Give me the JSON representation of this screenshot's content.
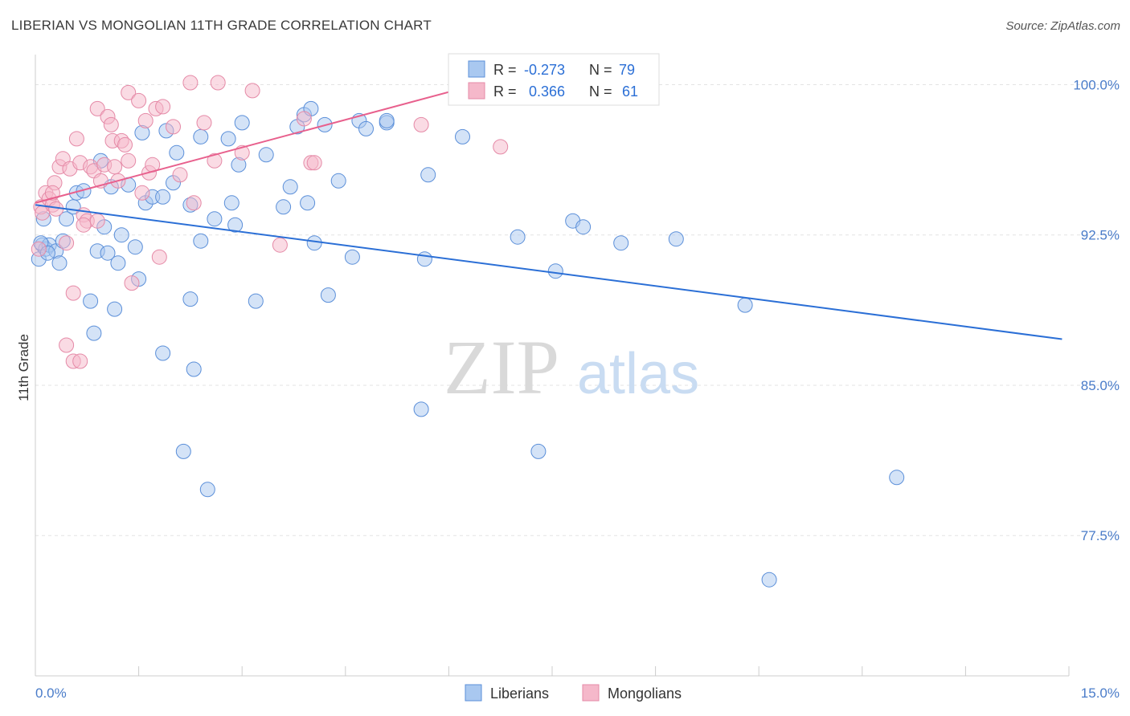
{
  "header": {
    "title": "LIBERIAN VS MONGOLIAN 11TH GRADE CORRELATION CHART",
    "source": "Source: ZipAtlas.com"
  },
  "watermark": {
    "zip": "ZIP",
    "atlas": "atlas"
  },
  "legend_top": {
    "rows": [
      {
        "r_label": "R =",
        "r_value": "-0.273",
        "n_label": "N =",
        "n_value": "79",
        "color": "#a9c8f0"
      },
      {
        "r_label": "R =",
        "r_value": "0.366",
        "n_label": "N =",
        "n_value": "61",
        "color": "#f5b8ca"
      }
    ]
  },
  "legend_bottom": {
    "items": [
      {
        "label": "Liberians",
        "color": "#a9c8f0"
      },
      {
        "label": "Mongolians",
        "color": "#f5b8ca"
      }
    ]
  },
  "chart_data": {
    "type": "scatter",
    "title": "LIBERIAN VS MONGOLIAN 11TH GRADE CORRELATION CHART",
    "xlabel": "",
    "ylabel": "11th Grade",
    "xlim": [
      0,
      15
    ],
    "ylim": [
      70.5,
      101.5
    ],
    "x_tick_labels": [
      "0.0%",
      "15.0%"
    ],
    "y_ticks": [
      {
        "value": 100,
        "label": "100.0%"
      },
      {
        "value": 92.5,
        "label": "92.5%"
      },
      {
        "value": 85,
        "label": "85.0%"
      },
      {
        "value": 77.5,
        "label": "77.5%"
      }
    ],
    "grid": true,
    "legend_position": "bottom",
    "series": [
      {
        "name": "Liberians",
        "color": "#5b8fd9",
        "fill": "#a9c8f0",
        "trend": {
          "x": [
            0,
            14.9
          ],
          "y": [
            94.0,
            87.3
          ],
          "color": "#2b6fd6"
        },
        "points": [
          [
            0.05,
            91.3
          ],
          [
            0.1,
            92.0
          ],
          [
            0.12,
            93.3
          ],
          [
            0.15,
            91.8
          ],
          [
            0.2,
            92.0
          ],
          [
            0.3,
            91.7
          ],
          [
            0.35,
            91.1
          ],
          [
            0.4,
            92.2
          ],
          [
            0.45,
            93.3
          ],
          [
            0.55,
            93.9
          ],
          [
            0.6,
            94.6
          ],
          [
            0.7,
            94.7
          ],
          [
            0.8,
            89.2
          ],
          [
            0.85,
            87.6
          ],
          [
            0.9,
            91.7
          ],
          [
            0.95,
            96.2
          ],
          [
            1.0,
            92.9
          ],
          [
            1.05,
            91.6
          ],
          [
            1.1,
            94.9
          ],
          [
            1.15,
            88.8
          ],
          [
            1.2,
            91.1
          ],
          [
            1.25,
            92.5
          ],
          [
            1.35,
            95.0
          ],
          [
            1.45,
            91.9
          ],
          [
            1.5,
            90.3
          ],
          [
            1.55,
            97.6
          ],
          [
            1.6,
            94.1
          ],
          [
            1.7,
            94.4
          ],
          [
            1.85,
            94.4
          ],
          [
            1.9,
            97.7
          ],
          [
            1.85,
            86.6
          ],
          [
            2.0,
            95.1
          ],
          [
            2.05,
            96.6
          ],
          [
            2.15,
            81.7
          ],
          [
            2.25,
            94.0
          ],
          [
            2.25,
            89.3
          ],
          [
            2.3,
            85.8
          ],
          [
            2.4,
            97.4
          ],
          [
            2.4,
            92.2
          ],
          [
            2.5,
            79.8
          ],
          [
            2.6,
            93.3
          ],
          [
            2.8,
            97.3
          ],
          [
            2.85,
            94.1
          ],
          [
            2.9,
            93.0
          ],
          [
            2.95,
            96.0
          ],
          [
            3.0,
            98.1
          ],
          [
            3.2,
            89.2
          ],
          [
            3.35,
            96.5
          ],
          [
            3.6,
            93.9
          ],
          [
            3.7,
            94.9
          ],
          [
            3.8,
            97.9
          ],
          [
            3.9,
            98.5
          ],
          [
            3.95,
            94.1
          ],
          [
            4.0,
            98.8
          ],
          [
            4.05,
            92.1
          ],
          [
            4.2,
            98.0
          ],
          [
            4.25,
            89.5
          ],
          [
            4.4,
            95.2
          ],
          [
            4.6,
            91.4
          ],
          [
            4.7,
            98.2
          ],
          [
            4.8,
            97.8
          ],
          [
            5.1,
            98.1
          ],
          [
            5.1,
            98.2
          ],
          [
            5.6,
            83.8
          ],
          [
            5.65,
            91.3
          ],
          [
            5.7,
            95.5
          ],
          [
            6.2,
            97.4
          ],
          [
            7.0,
            92.4
          ],
          [
            7.3,
            81.7
          ],
          [
            7.55,
            90.7
          ],
          [
            7.8,
            93.2
          ],
          [
            7.95,
            92.9
          ],
          [
            8.5,
            92.1
          ],
          [
            9.3,
            92.3
          ],
          [
            10.3,
            89.0
          ],
          [
            10.65,
            75.3
          ],
          [
            12.5,
            80.4
          ],
          [
            0.08,
            92.1
          ],
          [
            0.18,
            91.6
          ]
        ]
      },
      {
        "name": "Mongolians",
        "color": "#e58aa7",
        "fill": "#f5b8ca",
        "trend": {
          "x": [
            0,
            6.4
          ],
          "y": [
            94.1,
            100.0
          ],
          "color": "#e8608d"
        },
        "points": [
          [
            0.05,
            91.8
          ],
          [
            0.08,
            93.9
          ],
          [
            0.1,
            93.6
          ],
          [
            0.15,
            94.6
          ],
          [
            0.2,
            94.3
          ],
          [
            0.25,
            94.0
          ],
          [
            0.28,
            95.1
          ],
          [
            0.3,
            93.8
          ],
          [
            0.35,
            95.9
          ],
          [
            0.4,
            96.3
          ],
          [
            0.45,
            92.1
          ],
          [
            0.5,
            95.8
          ],
          [
            0.55,
            89.6
          ],
          [
            0.6,
            97.3
          ],
          [
            0.65,
            96.1
          ],
          [
            0.7,
            93.5
          ],
          [
            0.75,
            93.2
          ],
          [
            0.8,
            95.9
          ],
          [
            0.85,
            95.7
          ],
          [
            0.9,
            98.8
          ],
          [
            0.95,
            95.2
          ],
          [
            1.0,
            96.0
          ],
          [
            1.05,
            98.4
          ],
          [
            1.1,
            98.0
          ],
          [
            1.12,
            97.2
          ],
          [
            1.15,
            95.9
          ],
          [
            1.2,
            95.2
          ],
          [
            1.25,
            97.2
          ],
          [
            1.3,
            97.0
          ],
          [
            1.35,
            96.2
          ],
          [
            1.35,
            99.6
          ],
          [
            1.4,
            90.1
          ],
          [
            1.5,
            99.2
          ],
          [
            1.55,
            94.6
          ],
          [
            1.6,
            98.2
          ],
          [
            1.65,
            95.6
          ],
          [
            1.7,
            96.0
          ],
          [
            1.75,
            98.8
          ],
          [
            1.8,
            91.4
          ],
          [
            1.85,
            98.9
          ],
          [
            2.0,
            97.9
          ],
          [
            2.1,
            95.5
          ],
          [
            2.25,
            100.1
          ],
          [
            2.3,
            94.1
          ],
          [
            2.45,
            98.1
          ],
          [
            2.6,
            96.2
          ],
          [
            2.65,
            100.1
          ],
          [
            3.0,
            96.6
          ],
          [
            3.15,
            99.7
          ],
          [
            3.55,
            92.0
          ],
          [
            3.9,
            98.3
          ],
          [
            4.0,
            96.1
          ],
          [
            4.05,
            96.1
          ],
          [
            5.6,
            98.0
          ],
          [
            6.75,
            96.9
          ],
          [
            0.45,
            87.0
          ],
          [
            0.55,
            86.2
          ],
          [
            0.65,
            86.2
          ],
          [
            0.7,
            93.0
          ],
          [
            0.25,
            94.6
          ],
          [
            0.9,
            93.2
          ]
        ]
      }
    ]
  }
}
